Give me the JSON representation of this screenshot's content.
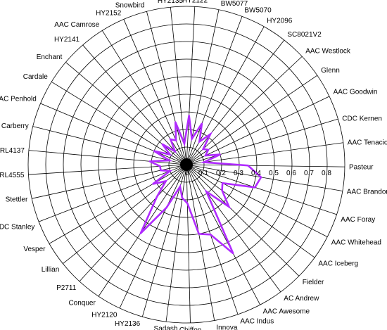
{
  "chart_data": {
    "type": "radar",
    "title": "",
    "categories": [
      "HY2122",
      "BW5077",
      "BW5070",
      "HY2096",
      "SC8021V2",
      "AAC Westlock",
      "Glenn",
      "AAC Goodwin",
      "CDC Kernen",
      "AAC Tenacious",
      "Pasteur",
      "AAC Brandon",
      "AAC Foray",
      "AAC Whitehead",
      "AAC Iceberg",
      "Fielder",
      "AC Andrew",
      "AAC Awesome",
      "AAC Indus",
      "Innova",
      "Chiffon",
      "Sadash",
      "HY2136",
      "HY2120",
      "Conquer",
      "P2711",
      "Lillian",
      "Vesper",
      "CDC Stanley",
      "Stettler",
      "RL4555",
      "RL4137",
      "Carberry",
      "AAC Penhold",
      "Cardale",
      "Enchant",
      "HY2141",
      "AAC Camrose",
      "HY2152",
      "Snowbird",
      "HY2135"
    ],
    "axis_ticks": [
      "0",
      "0.1",
      "0.2",
      "0.3",
      "0.4",
      "0.5",
      "0.6",
      "0.7",
      "0.8"
    ],
    "rlim": [
      0,
      0.9
    ],
    "grid": true,
    "series": [
      {
        "color": "#B02BFF",
        "values": [
          0.28,
          0.15,
          0.25,
          0.15,
          0.22,
          0.13,
          0.15,
          0.12,
          0.2,
          0.1,
          0.35,
          0.43,
          0.41,
          0.23,
          0.25,
          0.34,
          0.19,
          0.57,
          0.42,
          0.4,
          0.22,
          0.19,
          0.13,
          0.27,
          0.47,
          0.25,
          0.15,
          0.22,
          0.1,
          0.15,
          0.15,
          0.21,
          0.1,
          0.2,
          0.11,
          0.18,
          0.1,
          0.17,
          0.15,
          0.25,
          0.12
        ]
      }
    ]
  }
}
